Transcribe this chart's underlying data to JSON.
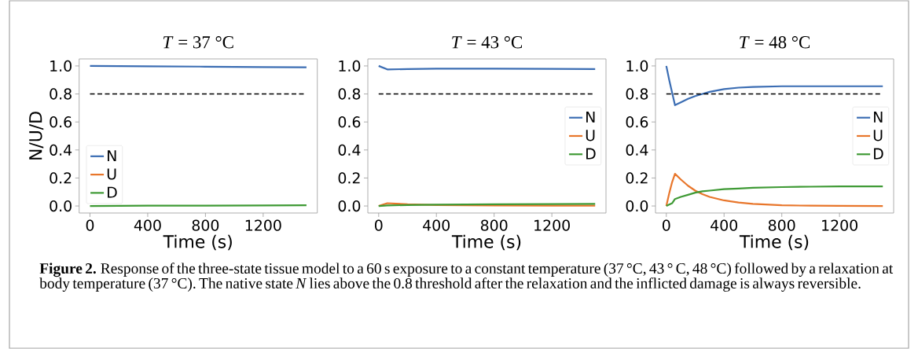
{
  "chart_data": [
    {
      "type": "line",
      "title": "*T* = 37 °C",
      "xlabel": "Time (s)",
      "ylabel": "N/U/D",
      "x": [
        0,
        400,
        800,
        1200,
        1500
      ],
      "series": [
        {
          "name": "N",
          "color": "#3b6db3",
          "values": [
            1.0,
            0.997,
            0.995,
            0.992,
            0.99
          ]
        },
        {
          "name": "U",
          "color": "#e8762b",
          "values": [
            null,
            null,
            null,
            null,
            null
          ]
        },
        {
          "name": "D",
          "color": "#3f9a35",
          "values": [
            0,
            0.002,
            0.003,
            0.004,
            0.005
          ]
        }
      ],
      "xlim": [
        -75,
        1575
      ],
      "ylim": [
        -0.05,
        1.05
      ],
      "xticks": [
        0,
        400,
        800,
        1200
      ],
      "yticks": [
        {
          "value": 0,
          "label": "0.0"
        },
        {
          "value": 0.2,
          "label": "0.2"
        },
        {
          "value": 0.4,
          "label": "0.4"
        },
        {
          "value": 0.6,
          "label": "0.6"
        },
        {
          "value": 0.8,
          "label": "0.8"
        },
        {
          "value": 1.0,
          "label": "1.0"
        }
      ],
      "ref_lines": [
        {
          "axis": "y",
          "value": 0.8,
          "color": "#000000",
          "line_style": "dashed"
        }
      ],
      "legend": "bottom left",
      "grid": false,
      "line_style": "solid",
      "annotations": [
        "**Figure 2.** Response of the three-state tissue model to a 60 s exposure to a constant temperature (37 °C, 43 ° C, 48 °C) followed by a relaxation at body temperature (37 °C). The native state *N* lies above the 0.8 threshold after the relaxation and the inflicted damage is always reversible."
      ]
    },
    {
      "type": "line",
      "title": "*T* = 43 °C",
      "xlabel": "Time (s)",
      "x": [
        0,
        60,
        200,
        400,
        800,
        1200,
        1500
      ],
      "series": [
        {
          "name": "N",
          "color": "#3b6db3",
          "values": [
            1.0,
            0.975,
            0.978,
            0.98,
            0.98,
            0.979,
            0.978
          ]
        },
        {
          "name": "U",
          "color": "#e8762b",
          "values": [
            0,
            0.02,
            0.012,
            0.007,
            0.004,
            0.003,
            0.002
          ]
        },
        {
          "name": "D",
          "color": "#3f9a35",
          "values": [
            0,
            0.004,
            0.007,
            0.009,
            0.012,
            0.014,
            0.015
          ]
        }
      ],
      "xlim": [
        -75,
        1575
      ],
      "ylim": [
        -0.05,
        1.05
      ],
      "xticks": [
        0,
        400,
        800,
        1200
      ],
      "yticks": [
        {
          "value": 0,
          "label": "0.0"
        },
        {
          "value": 0.2,
          "label": "0.2"
        },
        {
          "value": 0.4,
          "label": "0.4"
        },
        {
          "value": 0.6,
          "label": "0.6"
        },
        {
          "value": 0.8,
          "label": "0.8"
        },
        {
          "value": 1.0,
          "label": "1.0"
        }
      ],
      "ref_lines": [
        {
          "axis": "y",
          "value": 0.8,
          "color": "#000000",
          "line_style": "dashed"
        }
      ],
      "legend": "right",
      "grid": false,
      "line_style": "solid"
    },
    {
      "type": "line",
      "title": "*T* = 48 °C",
      "xlabel": "Time (s)",
      "x": [
        0,
        20,
        40,
        60,
        100,
        150,
        200,
        250,
        300,
        400,
        500,
        600,
        800,
        1000,
        1200,
        1500
      ],
      "series": [
        {
          "name": "N",
          "color": "#3b6db3",
          "values": [
            1.0,
            0.9,
            0.81,
            0.72,
            0.74,
            0.765,
            0.785,
            0.8,
            0.815,
            0.835,
            0.845,
            0.85,
            0.855,
            0.855,
            0.855,
            0.855
          ]
        },
        {
          "name": "U",
          "color": "#e8762b",
          "values": [
            0,
            0.09,
            0.17,
            0.23,
            0.19,
            0.145,
            0.11,
            0.085,
            0.065,
            0.04,
            0.025,
            0.015,
            0.005,
            0.002,
            0.001,
            0
          ]
        },
        {
          "name": "D",
          "color": "#3f9a35",
          "values": [
            0,
            0.01,
            0.02,
            0.05,
            0.065,
            0.08,
            0.095,
            0.105,
            0.11,
            0.12,
            0.125,
            0.13,
            0.135,
            0.138,
            0.14,
            0.14
          ]
        }
      ],
      "xlim": [
        -75,
        1575
      ],
      "ylim": [
        -0.05,
        1.05
      ],
      "xticks": [
        0,
        400,
        800,
        1200
      ],
      "yticks": [
        {
          "value": 0,
          "label": "0.0"
        },
        {
          "value": 0.2,
          "label": "0.2"
        },
        {
          "value": 0.4,
          "label": "0.4"
        },
        {
          "value": 0.6,
          "label": "0.6"
        },
        {
          "value": 0.8,
          "label": "0.8"
        },
        {
          "value": 1.0,
          "label": "1.0"
        }
      ],
      "ref_lines": [
        {
          "axis": "y",
          "value": 0.8,
          "color": "#000000",
          "line_style": "dashed"
        }
      ],
      "legend": "right",
      "grid": false,
      "line_style": "solid"
    }
  ]
}
